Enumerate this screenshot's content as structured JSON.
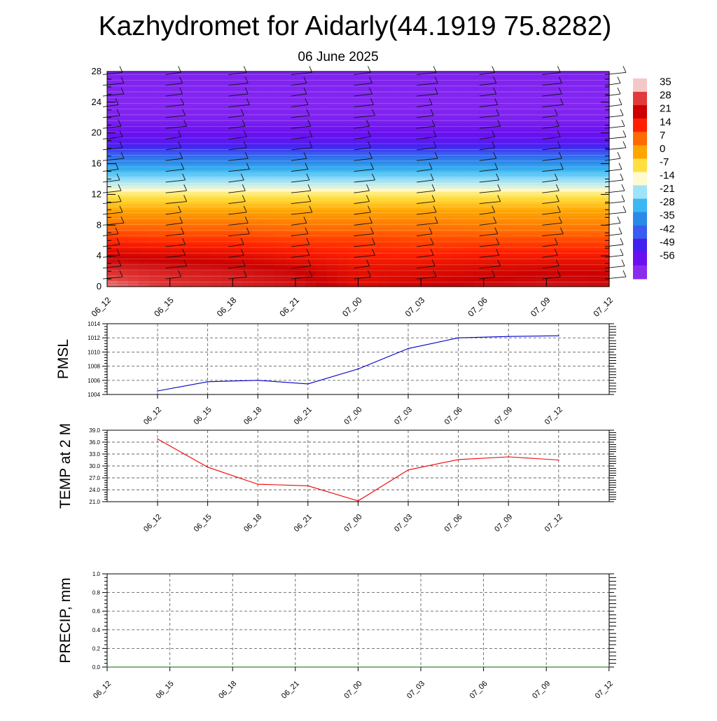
{
  "title": "Kazhydromet for Aidarly(44.1919 75.8282)",
  "subtitle": "06 June 2025",
  "colors": {
    "pmsl_line": "#0000cc",
    "temp_line": "#ee0000",
    "precip_line": "#006600",
    "grid": "#666666",
    "axis": "#000000"
  },
  "chart_data": [
    {
      "id": "temperature-profile",
      "type": "heatmap",
      "time_labels": [
        "06_12",
        "06_15",
        "06_18",
        "06_21",
        "07_00",
        "07_03",
        "07_06",
        "07_09",
        "07_12"
      ],
      "y_ticks": [
        0,
        4,
        8,
        12,
        16,
        20,
        24,
        28
      ],
      "ylim": [
        0,
        28
      ],
      "colorbar_labels": [
        35,
        28,
        21,
        14,
        7,
        0,
        -7,
        -14,
        -21,
        -28,
        -35,
        -42,
        -49,
        -56
      ],
      "colorbar_colors": [
        "#f4c8c8",
        "#e23a3a",
        "#cc0000",
        "#ff2000",
        "#ff6a00",
        "#ffa400",
        "#ffe040",
        "#fffbd0",
        "#9fe3f8",
        "#3ab8f4",
        "#2a8ae8",
        "#3a5cf0",
        "#4420f0",
        "#6a10f0",
        "#8a2cf0"
      ],
      "level_values_at_times": [
        {
          "level": 0,
          "values": [
            35,
            31,
            29,
            27,
            22,
            24,
            26,
            27,
            26
          ]
        },
        {
          "level": 2,
          "values": [
            30,
            28,
            27,
            25,
            21,
            22,
            23,
            24,
            24
          ]
        },
        {
          "level": 4,
          "values": [
            24,
            23,
            22,
            20,
            18,
            18,
            19,
            19,
            19
          ]
        },
        {
          "level": 6,
          "values": [
            17,
            16,
            16,
            15,
            15,
            14,
            14,
            14,
            14
          ]
        },
        {
          "level": 8,
          "values": [
            10,
            10,
            10,
            9,
            9,
            9,
            8,
            8,
            8
          ]
        },
        {
          "level": 10,
          "values": [
            3,
            3,
            3,
            3,
            3,
            3,
            3,
            3,
            3
          ]
        },
        {
          "level": 12,
          "values": [
            -5,
            -5,
            -5,
            -5,
            -5,
            -5,
            -5,
            -5,
            -5
          ]
        },
        {
          "level": 13,
          "values": [
            -13,
            -13,
            -13,
            -13,
            -13,
            -13,
            -13,
            -13,
            -13
          ]
        },
        {
          "level": 15,
          "values": [
            -24,
            -24,
            -24,
            -24,
            -24,
            -24,
            -24,
            -24,
            -24
          ]
        },
        {
          "level": 17,
          "values": [
            -36,
            -36,
            -36,
            -36,
            -36,
            -36,
            -36,
            -36,
            -36
          ]
        },
        {
          "level": 19,
          "values": [
            -50,
            -50,
            -50,
            -50,
            -50,
            -50,
            -50,
            -50,
            -50
          ]
        },
        {
          "level": 22,
          "values": [
            -57,
            -57,
            -57,
            -57,
            -57,
            -57,
            -57,
            -57,
            -57
          ]
        },
        {
          "level": 24,
          "values": [
            -58,
            -58,
            -58,
            -58,
            -58,
            -58,
            -58,
            -58,
            -58
          ]
        },
        {
          "level": 28,
          "values": [
            -57,
            -57,
            -57,
            -57,
            -57,
            -57,
            -57,
            -57,
            -57
          ]
        }
      ]
    },
    {
      "id": "pmsl",
      "type": "line",
      "ylabel": "PMSL",
      "categories": [
        "06_12",
        "06_15",
        "06_18",
        "06_21",
        "07_00",
        "07_03",
        "07_06",
        "07_09",
        "07_12"
      ],
      "values": [
        1004.5,
        1005.8,
        1006.0,
        1005.5,
        1007.6,
        1010.5,
        1012.0,
        1012.2,
        1012.3
      ],
      "y_ticks": [
        1004,
        1006,
        1008,
        1010,
        1012,
        1014
      ],
      "ylim": [
        1004,
        1014
      ],
      "grid": true
    },
    {
      "id": "temp2m",
      "type": "line",
      "ylabel": "TEMP at 2 M",
      "categories": [
        "06_12",
        "06_15",
        "06_18",
        "06_21",
        "07_00",
        "07_03",
        "07_06",
        "07_09",
        "07_12"
      ],
      "values": [
        36.8,
        29.7,
        25.4,
        25.0,
        21.2,
        29.0,
        31.6,
        32.3,
        31.5
      ],
      "y_ticks": [
        "21.0",
        "24.0",
        "27.0",
        "30.0",
        "33.0",
        "36.0",
        "39.0"
      ],
      "ylim": [
        21,
        39
      ],
      "grid": true
    },
    {
      "id": "precip",
      "type": "line",
      "ylabel": "PRECIP, mm",
      "categories": [
        "06_12",
        "06_15",
        "06_18",
        "06_21",
        "07_00",
        "07_03",
        "07_06",
        "07_09",
        "07_12"
      ],
      "values": [
        0,
        0,
        0,
        0,
        0,
        0,
        0,
        0,
        0
      ],
      "y_ticks": [
        "0.0",
        "0.2",
        "0.4",
        "0.6",
        "0.8",
        "1.0"
      ],
      "ylim": [
        0,
        1
      ],
      "grid": true
    }
  ]
}
